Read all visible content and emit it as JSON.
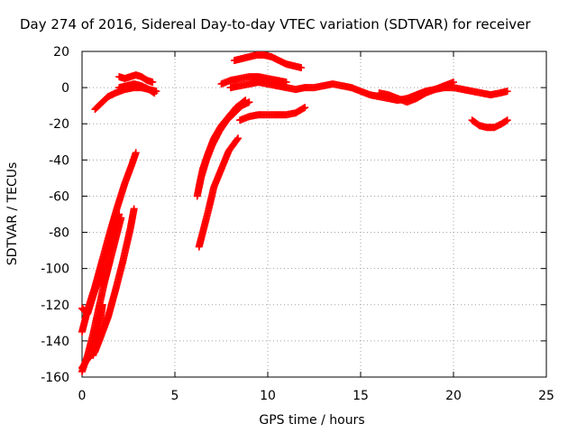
{
  "chart_data": {
    "type": "scatter",
    "title": "Day 274 of 2016, Sidereal Day-to-day VTEC variation (SDTVAR) for receiver",
    "xlabel": "GPS time / hours",
    "ylabel": "SDTVAR / TECUs",
    "xlim": [
      0,
      25
    ],
    "ylim": [
      -160,
      20
    ],
    "xticks": [
      0,
      5,
      10,
      15,
      20,
      25
    ],
    "yticks": [
      -160,
      -140,
      -120,
      -100,
      -80,
      -60,
      -40,
      -20,
      0,
      20
    ],
    "grid": true,
    "marker": "+",
    "color": "#ff0000",
    "series": [
      {
        "x": [
          0.0,
          0.3,
          0.7,
          1.1,
          1.5,
          1.9,
          2.3,
          2.7,
          2.9
        ],
        "y": [
          -135,
          -123,
          -110,
          -95,
          -80,
          -66,
          -53,
          -42,
          -36
        ]
      },
      {
        "x": [
          0.0,
          0.3,
          0.6,
          1.0,
          1.3,
          1.6,
          2.0
        ],
        "y": [
          -122,
          -125,
          -115,
          -103,
          -92,
          -85,
          -70
        ]
      },
      {
        "x": [
          0.0,
          0.3,
          0.6,
          0.9,
          1.2,
          1.5,
          1.8,
          2.1
        ],
        "y": [
          -157,
          -148,
          -136,
          -122,
          -108,
          -96,
          -84,
          -72
        ]
      },
      {
        "x": [
          0.0,
          0.3,
          0.7,
          1.0,
          1.4,
          1.8,
          2.2,
          2.6,
          2.8
        ],
        "y": [
          -155,
          -150,
          -146,
          -138,
          -127,
          -112,
          -96,
          -78,
          -67
        ]
      },
      {
        "x": [
          0.6,
          0.8,
          1.0,
          1.1
        ],
        "y": [
          -148,
          -138,
          -128,
          -120
        ]
      },
      {
        "x": [
          0.7,
          1.0,
          1.4,
          1.8,
          2.3,
          2.8,
          3.2,
          3.6,
          4.0
        ],
        "y": [
          -12,
          -9,
          -5,
          -3,
          -1,
          0,
          0,
          -1,
          -2
        ]
      },
      {
        "x": [
          2.0,
          2.3,
          2.6,
          2.9,
          3.2,
          3.5,
          3.8
        ],
        "y": [
          6,
          5,
          6,
          7,
          6,
          4,
          3
        ]
      },
      {
        "x": [
          2.0,
          2.4,
          2.8,
          3.2,
          3.6,
          3.9
        ],
        "y": [
          0,
          1,
          2,
          1,
          -1,
          -3
        ]
      },
      {
        "x": [
          6.2,
          6.4,
          6.7,
          7.0,
          7.4,
          7.8,
          8.2,
          8.6,
          9.0
        ],
        "y": [
          -60,
          -50,
          -40,
          -32,
          -24,
          -18,
          -14,
          -10,
          -8
        ]
      },
      {
        "x": [
          6.3,
          6.5,
          6.8,
          7.1,
          7.5,
          7.9,
          8.3,
          8.8
        ],
        "y": [
          -55,
          -45,
          -36,
          -28,
          -21,
          -16,
          -11,
          -7
        ]
      },
      {
        "x": [
          6.3,
          6.5,
          6.8,
          7.1,
          7.5,
          7.9,
          8.4
        ],
        "y": [
          -88,
          -80,
          -68,
          -55,
          -45,
          -35,
          -28
        ]
      },
      {
        "x": [
          7.5,
          8.0,
          8.5,
          9.0,
          9.5,
          10.0,
          10.5,
          11.0
        ],
        "y": [
          2,
          4,
          5,
          6,
          6,
          5,
          4,
          3
        ]
      },
      {
        "x": [
          8.2,
          8.6,
          9.0,
          9.4,
          9.8,
          10.2,
          10.6,
          11.0,
          11.4,
          11.8
        ],
        "y": [
          15,
          16,
          17,
          18,
          18,
          17,
          15,
          13,
          12,
          11
        ]
      },
      {
        "x": [
          8.5,
          9.0,
          9.5,
          10.0,
          10.5,
          11.0,
          11.5,
          12.0
        ],
        "y": [
          -18,
          -16,
          -15,
          -15,
          -15,
          -15,
          -14,
          -11
        ]
      },
      {
        "x": [
          8.0,
          8.5,
          9.0,
          9.5,
          10.0,
          10.5,
          11.0,
          11.5,
          12.0,
          12.5,
          13.0,
          13.5,
          14.0,
          14.5,
          15.0,
          15.5,
          16.0,
          16.5,
          17.0,
          17.5,
          18.0,
          18.5,
          19.0,
          19.5,
          20.0,
          20.5,
          21.0,
          21.5,
          22.0,
          22.5,
          22.9
        ],
        "y": [
          0,
          1,
          2,
          3,
          2,
          1,
          0,
          -1,
          0,
          0,
          1,
          2,
          1,
          0,
          -2,
          -4,
          -5,
          -6,
          -7,
          -6,
          -4,
          -2,
          -1,
          0,
          0,
          -1,
          -2,
          -3,
          -4,
          -3,
          -2
        ]
      },
      {
        "x": [
          16.0,
          16.5,
          17.0,
          17.5,
          18.0,
          18.5,
          19.0,
          19.5,
          20.0
        ],
        "y": [
          -3,
          -4,
          -6,
          -8,
          -6,
          -3,
          -1,
          1,
          3
        ]
      },
      {
        "x": [
          21.0,
          21.4,
          21.8,
          22.2,
          22.6,
          22.9
        ],
        "y": [
          -18,
          -21,
          -22,
          -22,
          -20,
          -18
        ]
      }
    ]
  }
}
